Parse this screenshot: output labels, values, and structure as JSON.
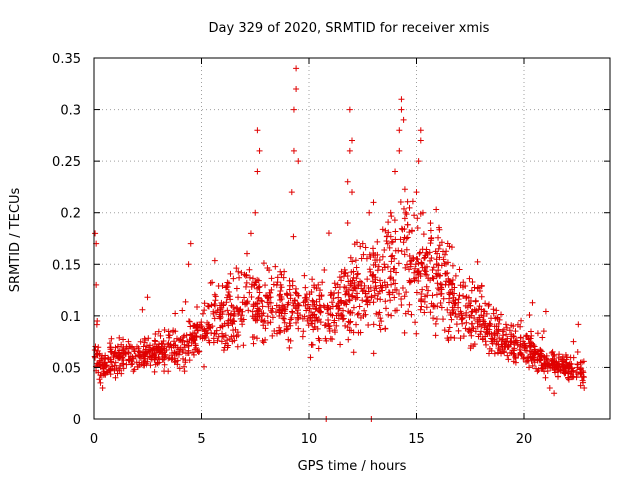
{
  "chart_data": {
    "type": "scatter",
    "title": "Day 329 of 2020, SRMTID for receiver xmis",
    "xlabel": "GPS time / hours",
    "ylabel": "SRMTID / TECUs",
    "xlim": [
      0,
      24
    ],
    "ylim": [
      0,
      0.35
    ],
    "grid": true,
    "marker": "+",
    "color": "#e00000",
    "x_ticks": [
      {
        "value": 0,
        "label": "0"
      },
      {
        "value": 5,
        "label": "5"
      },
      {
        "value": 10,
        "label": "10"
      },
      {
        "value": 15,
        "label": "15"
      },
      {
        "value": 20,
        "label": "20"
      }
    ],
    "y_ticks": [
      {
        "value": 0,
        "label": "0"
      },
      {
        "value": 0.05,
        "label": "0.05"
      },
      {
        "value": 0.1,
        "label": "0.1"
      },
      {
        "value": 0.15,
        "label": "0.15"
      },
      {
        "value": 0.2,
        "label": "0.2"
      },
      {
        "value": 0.25,
        "label": "0.25"
      },
      {
        "value": 0.3,
        "label": "0.3"
      },
      {
        "value": 0.35,
        "label": "0.35"
      }
    ],
    "series": [
      {
        "name": "SRMTID",
        "trend": {
          "x": [
            0,
            0.3,
            1,
            2,
            3,
            4,
            5,
            6,
            7,
            8,
            9,
            10,
            11,
            12,
            13,
            14,
            15,
            16,
            17,
            18,
            19,
            20,
            21,
            22,
            22.8
          ],
          "y": [
            0.07,
            0.05,
            0.06,
            0.062,
            0.065,
            0.068,
            0.085,
            0.098,
            0.11,
            0.115,
            0.11,
            0.105,
            0.1,
            0.12,
            0.13,
            0.145,
            0.15,
            0.135,
            0.115,
            0.095,
            0.075,
            0.07,
            0.055,
            0.05,
            0.045
          ]
        },
        "x": [
          0.05,
          0.1,
          0.1,
          0.15,
          0.2,
          0.3,
          0.4,
          0.6,
          0.8,
          1.0,
          1.3,
          1.6,
          2.0,
          2.5,
          3.0,
          3.5,
          4.0,
          4.4,
          4.5,
          5.0,
          5.5,
          6.0,
          6.5,
          7.0,
          7.3,
          7.5,
          7.6,
          7.6,
          7.7,
          8.0,
          8.5,
          9.0,
          9.2,
          9.3,
          9.3,
          9.4,
          9.4,
          9.5,
          10.0,
          10.5,
          11.0,
          11.5,
          11.8,
          11.8,
          11.9,
          11.9,
          12.0,
          12.0,
          12.3,
          12.5,
          12.8,
          13.0,
          13.5,
          13.8,
          14.0,
          14.2,
          14.2,
          14.3,
          14.3,
          14.4,
          14.5,
          15.0,
          15.1,
          15.2,
          15.2,
          15.3,
          15.5,
          16.0,
          16.5,
          17.0,
          17.5,
          18.0,
          18.5,
          19.0,
          19.5,
          20.0,
          20.5,
          21.0,
          21.2,
          21.4,
          21.6,
          22.0,
          22.3,
          22.5,
          22.7,
          22.8,
          10.8,
          12.9
        ],
        "y": [
          0.18,
          0.17,
          0.13,
          0.095,
          0.045,
          0.035,
          0.03,
          0.045,
          0.055,
          0.04,
          0.06,
          0.075,
          0.07,
          0.065,
          0.06,
          0.07,
          0.065,
          0.15,
          0.17,
          0.09,
          0.09,
          0.11,
          0.1,
          0.14,
          0.18,
          0.2,
          0.24,
          0.28,
          0.26,
          0.12,
          0.11,
          0.12,
          0.22,
          0.26,
          0.3,
          0.34,
          0.32,
          0.25,
          0.1,
          0.11,
          0.12,
          0.1,
          0.19,
          0.23,
          0.26,
          0.3,
          0.27,
          0.22,
          0.13,
          0.17,
          0.2,
          0.21,
          0.15,
          0.2,
          0.24,
          0.26,
          0.28,
          0.3,
          0.31,
          0.29,
          0.2,
          0.22,
          0.25,
          0.28,
          0.27,
          0.2,
          0.16,
          0.14,
          0.13,
          0.12,
          0.11,
          0.085,
          0.075,
          0.07,
          0.09,
          0.06,
          0.055,
          0.04,
          0.03,
          0.025,
          0.05,
          0.06,
          0.075,
          0.065,
          0.055,
          0.03,
          0.0,
          0.0
        ]
      }
    ]
  }
}
